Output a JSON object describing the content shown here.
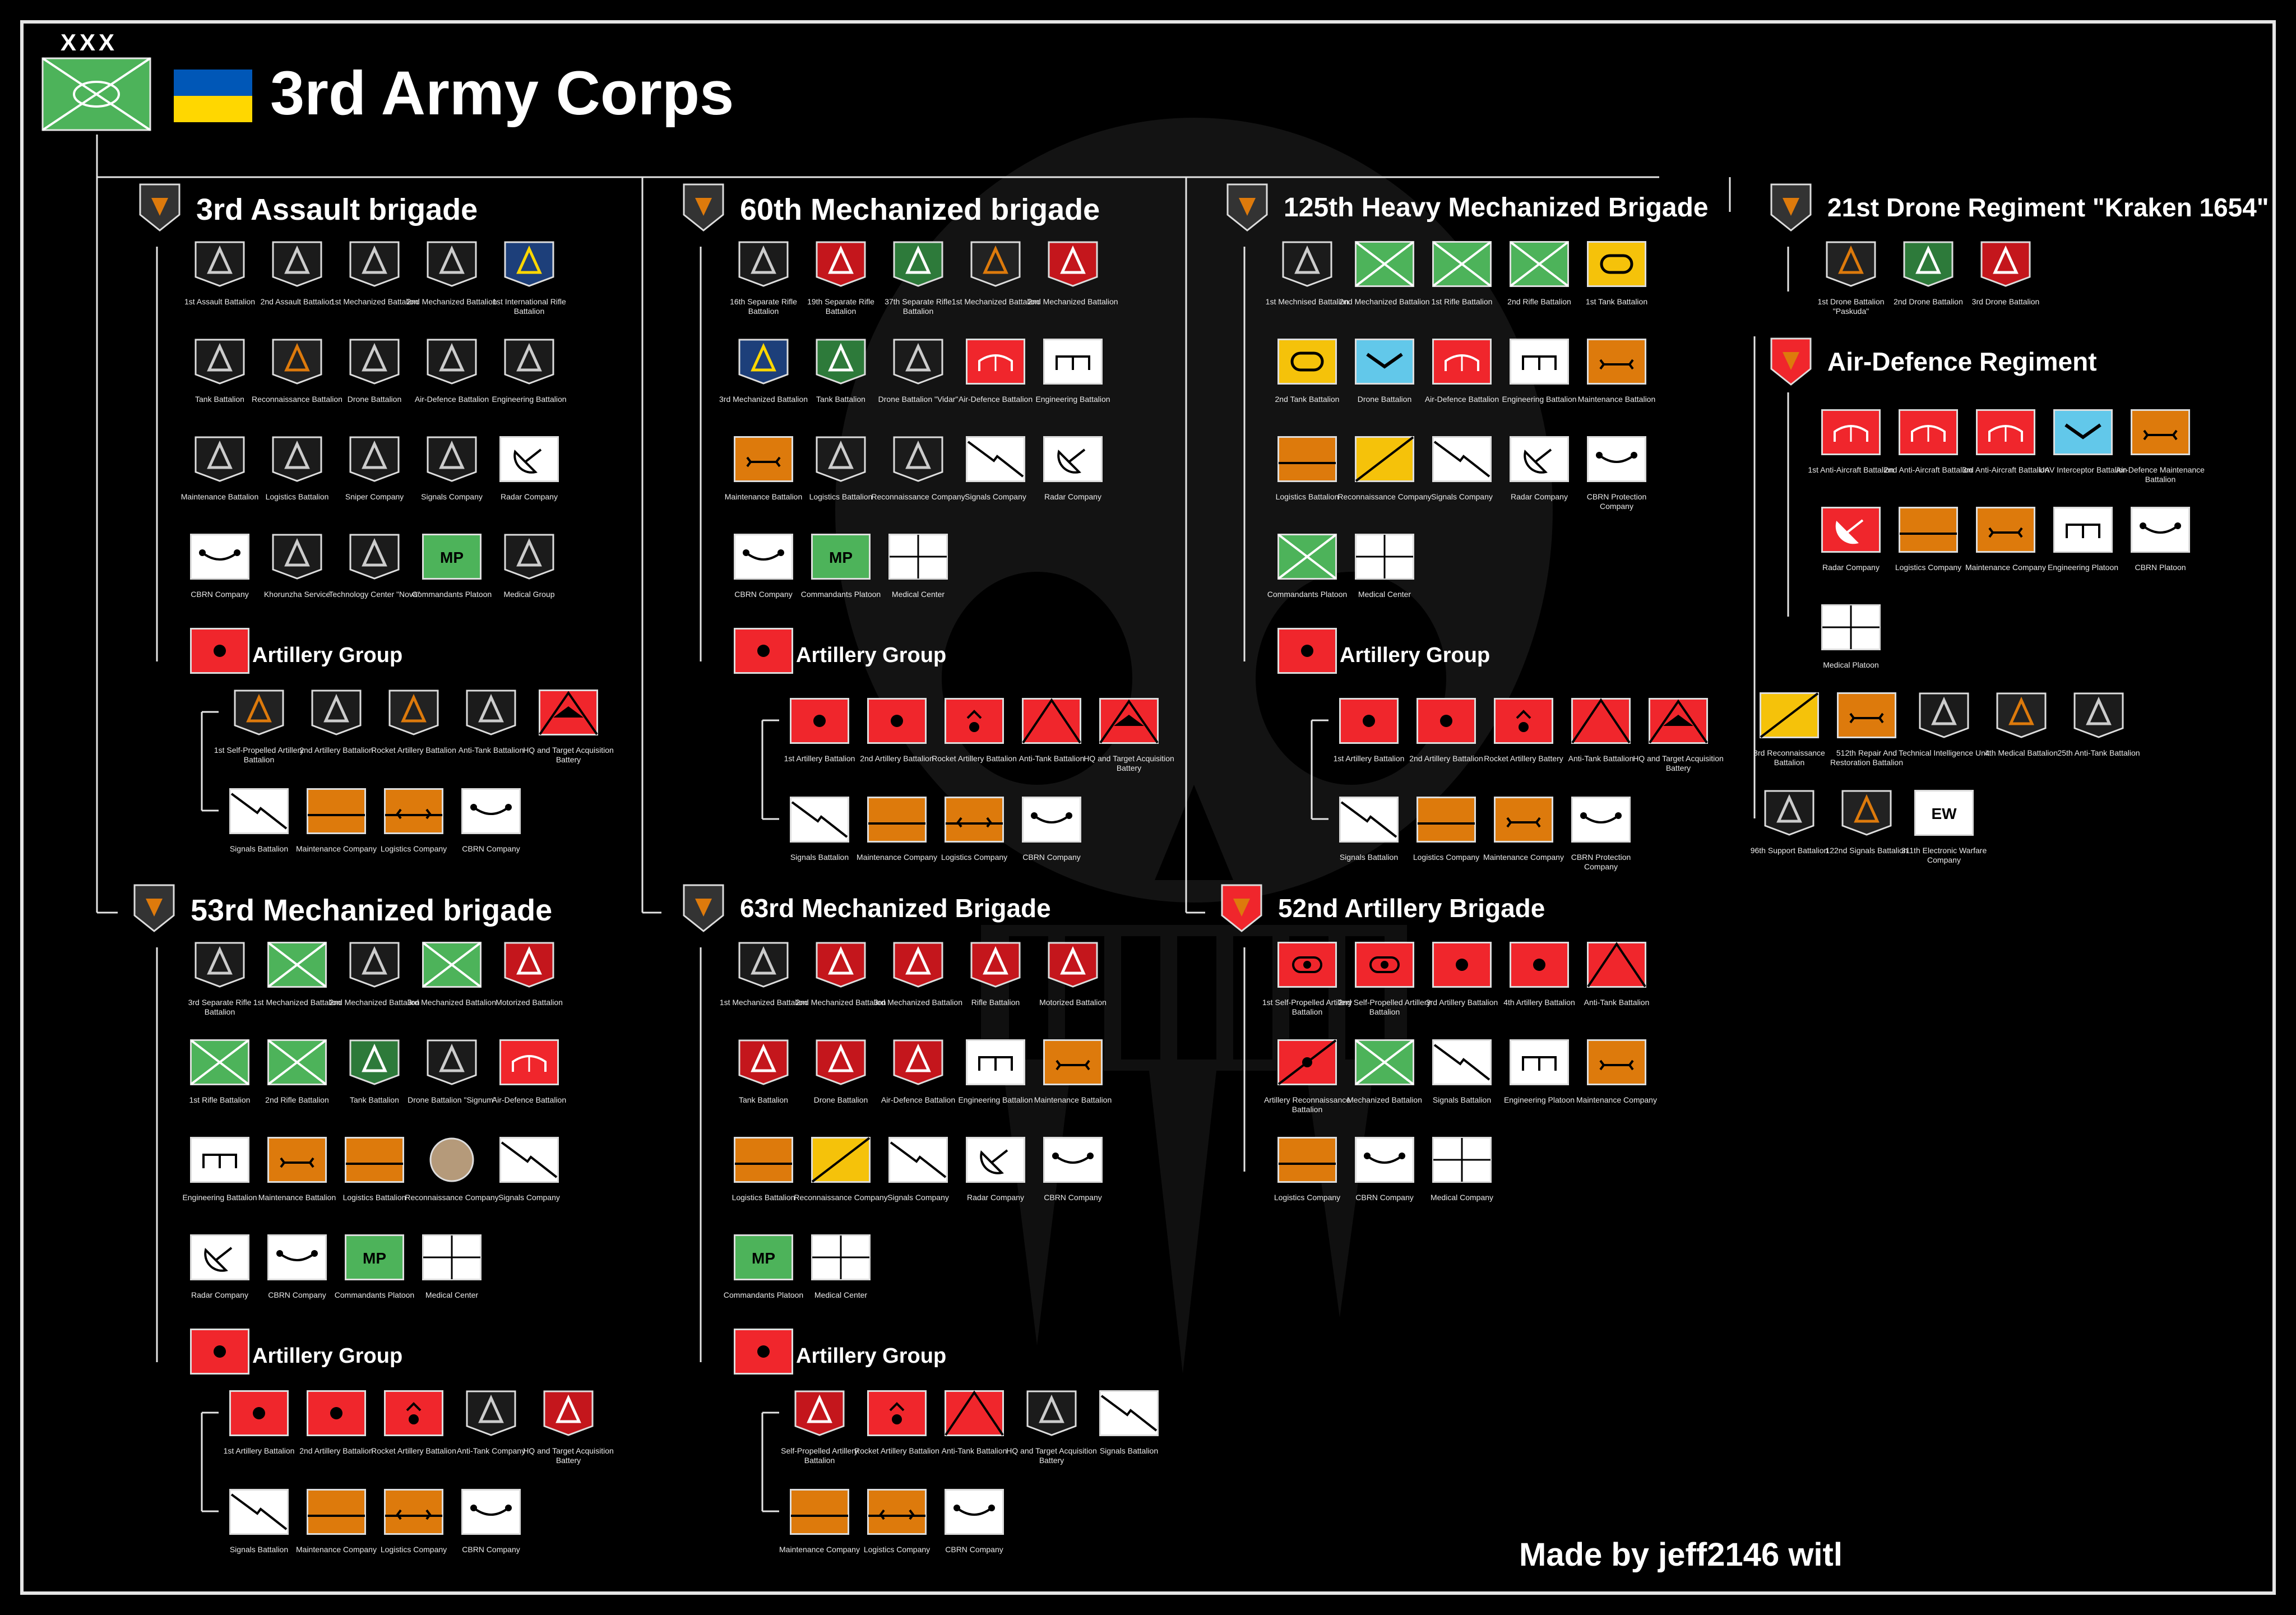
{
  "corps": {
    "title": "3rd Army Corps",
    "size_mark": "XXX"
  },
  "credit": "Made by jeff2146 witl",
  "colors": {
    "infantry": "#4db35a",
    "armor": "#f5c20a",
    "red": "#f0262c",
    "orange": "#dd7a0c",
    "light_blue": "#62c8ea",
    "background": "#000000"
  },
  "brigades": {
    "assault3": {
      "title": "3rd Assault brigade",
      "units": [
        {
          "label": "1st Assault Battalion",
          "type": "patch-dark"
        },
        {
          "label": "2nd Assault Battalion",
          "type": "patch-dark"
        },
        {
          "label": "1st Mechanized Battalion",
          "type": "patch-dark"
        },
        {
          "label": "2nd Mechanized Battalion",
          "type": "patch-dark"
        },
        {
          "label": "1st International Rifle Battalion",
          "type": "patch-blue"
        },
        {
          "label": "Tank Battalion",
          "type": "patch-dark"
        },
        {
          "label": "Reconnaissance Battalion",
          "type": "patch-orange"
        },
        {
          "label": "Drone Battalion",
          "type": "patch-dark"
        },
        {
          "label": "Air-Defence Battalion",
          "type": "patch-dark"
        },
        {
          "label": "Engineering Battalion",
          "type": "patch-dark"
        },
        {
          "label": "Maintenance Battalion",
          "type": "patch-dark"
        },
        {
          "label": "Logistics Battalion",
          "type": "patch-dark"
        },
        {
          "label": "Sniper Company",
          "type": "patch-dark"
        },
        {
          "label": "Signals Company",
          "type": "patch-dark"
        },
        {
          "label": "Radar Company",
          "type": "radar"
        },
        {
          "label": "CBRN Company",
          "type": "cbrn"
        },
        {
          "label": "Khorunzha Service",
          "type": "patch-dark"
        },
        {
          "label": "Technology Center \"Nova\"",
          "type": "patch-dark"
        },
        {
          "label": "Commandants Platoon",
          "type": "mp",
          "text": "MP"
        },
        {
          "label": "Medical Group",
          "type": "patch-dark"
        }
      ],
      "artillery_title": "Artillery Group",
      "artillery": [
        {
          "label": "1st Self-Propelled Artillery Battalion",
          "type": "patch-orange"
        },
        {
          "label": "2nd Artillery Battalion",
          "type": "patch-dark"
        },
        {
          "label": "Rocket Artillery Battalion",
          "type": "patch-orange"
        },
        {
          "label": "Anti-Tank Battalion",
          "type": "patch-dark"
        },
        {
          "label": "HQ and Target Acquisition Battery",
          "type": "hq-target"
        },
        {
          "label": "Signals Battalion",
          "type": "signals"
        },
        {
          "label": "Maintenance Company",
          "type": "maint-bar"
        },
        {
          "label": "Logistics Company",
          "type": "logistics"
        },
        {
          "label": "CBRN Company",
          "type": "cbrn"
        }
      ]
    },
    "mech60": {
      "title": "60th Mechanized brigade",
      "units": [
        {
          "label": "16th Separate Rifle Battalion",
          "type": "patch-dark"
        },
        {
          "label": "19th Separate Rifle Battalion",
          "type": "patch-red"
        },
        {
          "label": "37th Separate Rifle Battalion",
          "type": "patch-green"
        },
        {
          "label": "1st Mechanized Battalion",
          "type": "patch-orange"
        },
        {
          "label": "2nd Mechanized Battalion",
          "type": "patch-red"
        },
        {
          "label": "3rd Mechanized Battalion",
          "type": "patch-blue"
        },
        {
          "label": "Tank Battalion",
          "type": "patch-green"
        },
        {
          "label": "Drone Battalion \"Vidar\"",
          "type": "patch-dark"
        },
        {
          "label": "Air-Defence Battalion",
          "type": "air-defence"
        },
        {
          "label": "Engineering Battalion",
          "type": "engineering"
        },
        {
          "label": "Maintenance Battalion",
          "type": "maintenance"
        },
        {
          "label": "Logistics Battalion",
          "type": "patch-dark"
        },
        {
          "label": "Reconnaissance Company",
          "type": "patch-dark"
        },
        {
          "label": "Signals Company",
          "type": "signals"
        },
        {
          "label": "Radar Company",
          "type": "radar"
        },
        {
          "label": "CBRN Company",
          "type": "cbrn"
        },
        {
          "label": "Commandants Platoon",
          "type": "mp",
          "text": "MP"
        },
        {
          "label": "Medical Center",
          "type": "medical"
        }
      ],
      "artillery_title": "Artillery Group",
      "artillery": [
        {
          "label": "1st Artillery Battalion",
          "type": "artillery"
        },
        {
          "label": "2nd Artillery Battalion",
          "type": "artillery"
        },
        {
          "label": "Rocket Artillery Battalion",
          "type": "rocket"
        },
        {
          "label": "Anti-Tank Battalion",
          "type": "anti-tank"
        },
        {
          "label": "HQ and Target Acquisition Battery",
          "type": "hq-target"
        },
        {
          "label": "Signals Battalion",
          "type": "signals"
        },
        {
          "label": "Maintenance Company",
          "type": "maint-bar"
        },
        {
          "label": "Logistics Company",
          "type": "logistics"
        },
        {
          "label": "CBRN Company",
          "type": "cbrn"
        }
      ]
    },
    "heavy125": {
      "title": "125th Heavy Mechanized Brigade",
      "units": [
        {
          "label": "1st Mechnised Battalion",
          "type": "patch-dark"
        },
        {
          "label": "2nd Mechanized Battalion",
          "type": "infantry"
        },
        {
          "label": "1st Rifle Battalion",
          "type": "infantry"
        },
        {
          "label": "2nd Rifle Battalion",
          "type": "infantry"
        },
        {
          "label": "1st Tank Battalion",
          "type": "tank"
        },
        {
          "label": "2nd Tank Battalion",
          "type": "tank"
        },
        {
          "label": "Drone Battalion",
          "type": "drone"
        },
        {
          "label": "Air-Defence Battalion",
          "type": "air-defence"
        },
        {
          "label": "Engineering Battalion",
          "type": "engineering"
        },
        {
          "label": "Maintenance Battalion",
          "type": "maintenance"
        },
        {
          "label": "Logistics Battalion",
          "type": "maint-bar"
        },
        {
          "label": "Reconnaissance Company",
          "type": "recon"
        },
        {
          "label": "Signals Company",
          "type": "signals"
        },
        {
          "label": "Radar Company",
          "type": "radar"
        },
        {
          "label": "CBRN Protection Company",
          "type": "cbrn"
        },
        {
          "label": "Commandants Platoon",
          "type": "infantry"
        },
        {
          "label": "Medical Center",
          "type": "medical"
        }
      ],
      "artillery_title": "Artillery Group",
      "artillery": [
        {
          "label": "1st Artillery Battalion",
          "type": "artillery"
        },
        {
          "label": "2nd Artillery Battalion",
          "type": "artillery"
        },
        {
          "label": "Rocket Artillery Battery",
          "type": "rocket"
        },
        {
          "label": "Anti-Tank Battalion",
          "type": "anti-tank"
        },
        {
          "label": "HQ and Target Acquisition Battery",
          "type": "hq-target"
        },
        {
          "label": "Signals Battalion",
          "type": "signals"
        },
        {
          "label": "Logistics Company",
          "type": "maint-bar"
        },
        {
          "label": "Maintenance Company",
          "type": "maintenance"
        },
        {
          "label": "CBRN Protection Company",
          "type": "cbrn"
        }
      ]
    },
    "drone21": {
      "title": "21st Drone Regiment \"Kraken 1654\"",
      "units": [
        {
          "label": "1st Drone Battalion \"Paskuda\"",
          "type": "patch-orange"
        },
        {
          "label": "2nd Drone Battalion",
          "type": "patch-green"
        },
        {
          "label": "3rd Drone Battalion",
          "type": "patch-red"
        }
      ]
    },
    "airdef": {
      "title": "Air-Defence Regiment",
      "units": [
        {
          "label": "1st Anti-Aircraft Battalion",
          "type": "air-defence"
        },
        {
          "label": "2nd Anti-Aircraft Battalion",
          "type": "air-defence"
        },
        {
          "label": "3rd Anti-Aircraft Battalion",
          "type": "air-defence"
        },
        {
          "label": "UAV Interceptor Battalion",
          "type": "drone"
        },
        {
          "label": "Air-Defence Maintenance Battalion",
          "type": "maintenance"
        },
        {
          "label": "Radar Company",
          "type": "radar-red"
        },
        {
          "label": "Logistics Company",
          "type": "maint-bar"
        },
        {
          "label": "Maintenance Company",
          "type": "maintenance"
        },
        {
          "label": "Engineering Platoon",
          "type": "engineering"
        },
        {
          "label": "CBRN Platoon",
          "type": "cbrn"
        },
        {
          "label": "Medical Platoon",
          "type": "medical"
        }
      ]
    },
    "corps_units": [
      {
        "label": "3rd Reconnaissance Battalion",
        "type": "recon"
      },
      {
        "label": "512th Repair And Restoration Battalion",
        "type": "maintenance"
      },
      {
        "label": "Technical Intelligence Unit",
        "type": "patch-dark"
      },
      {
        "label": "4th Medical Battalion",
        "type": "patch-orange"
      },
      {
        "label": "25th Anti-Tank Battalion",
        "type": "patch-dark"
      },
      {
        "label": "96th Support Battalion",
        "type": "patch-dark"
      },
      {
        "label": "122nd Signals Battalion",
        "type": "patch-orange"
      },
      {
        "label": "311th Electronic Warfare Company",
        "type": "ew",
        "text": "EW"
      }
    ],
    "mech53": {
      "title": "53rd Mechanized brigade",
      "units": [
        {
          "label": "3rd Separate Rifle Battalion",
          "type": "patch-dark"
        },
        {
          "label": "1st Mechanized Battalion",
          "type": "infantry"
        },
        {
          "label": "2nd Mechanized Battalion",
          "type": "patch-dark"
        },
        {
          "label": "3rd Mechanized Battalion",
          "type": "infantry"
        },
        {
          "label": "Motorized Battalion",
          "type": "patch-red"
        },
        {
          "label": "1st Rifle Battalion",
          "type": "infantry"
        },
        {
          "label": "2nd Rifle Battalion",
          "type": "infantry"
        },
        {
          "label": "Tank Battalion",
          "type": "patch-green"
        },
        {
          "label": "Drone Battalion \"Signum\"",
          "type": "patch-dark"
        },
        {
          "label": "Air-Defence Battalion",
          "type": "air-defence"
        },
        {
          "label": "Engineering Battalion",
          "type": "engineering"
        },
        {
          "label": "Maintenance Battalion",
          "type": "maintenance"
        },
        {
          "label": "Logistics Battalion",
          "type": "maint-bar"
        },
        {
          "label": "Reconnaissance Company",
          "type": "patch-tan"
        },
        {
          "label": "Signals Company",
          "type": "signals"
        },
        {
          "label": "Radar Company",
          "type": "radar"
        },
        {
          "label": "CBRN Company",
          "type": "cbrn"
        },
        {
          "label": "Commandants Platoon",
          "type": "mp",
          "text": "MP"
        },
        {
          "label": "Medical Center",
          "type": "medical"
        }
      ],
      "artillery_title": "Artillery Group",
      "artillery": [
        {
          "label": "1st Artillery Battalion",
          "type": "artillery"
        },
        {
          "label": "2nd Artillery Battalion",
          "type": "artillery"
        },
        {
          "label": "Rocket Artillery Battalion",
          "type": "rocket"
        },
        {
          "label": "Anti-Tank Company",
          "type": "patch-dark"
        },
        {
          "label": "HQ and Target Acquisition Battery",
          "type": "patch-red"
        },
        {
          "label": "Signals Battalion",
          "type": "signals"
        },
        {
          "label": "Maintenance Company",
          "type": "maint-bar"
        },
        {
          "label": "Logistics Company",
          "type": "logistics"
        },
        {
          "label": "CBRN Company",
          "type": "cbrn"
        }
      ]
    },
    "mech63": {
      "title": "63rd Mechanized Brigade",
      "units": [
        {
          "label": "1st Mechanized Battalion",
          "type": "patch-dark"
        },
        {
          "label": "2nd Mechanized Battalion",
          "type": "patch-red"
        },
        {
          "label": "3rd Mechanized Battalion",
          "type": "patch-red"
        },
        {
          "label": "Rifle Battalion",
          "type": "patch-red"
        },
        {
          "label": "Motorized Battalion",
          "type": "patch-red"
        },
        {
          "label": "Tank Battalion",
          "type": "patch-red"
        },
        {
          "label": "Drone Battalion",
          "type": "patch-red"
        },
        {
          "label": "Air-Defence Battalion",
          "type": "patch-red"
        },
        {
          "label": "Engineering Battalion",
          "type": "engineering"
        },
        {
          "label": "Maintenance Battalion",
          "type": "maintenance"
        },
        {
          "label": "Logistics Battalion",
          "type": "maint-bar"
        },
        {
          "label": "Reconnaissance Company",
          "type": "recon"
        },
        {
          "label": "Signals Company",
          "type": "signals"
        },
        {
          "label": "Radar Company",
          "type": "radar"
        },
        {
          "label": "CBRN Company",
          "type": "cbrn"
        },
        {
          "label": "Commandants Platoon",
          "type": "mp",
          "text": "MP"
        },
        {
          "label": "Medical Center",
          "type": "medical"
        }
      ],
      "artillery_title": "Artillery Group",
      "artillery": [
        {
          "label": "Self-Propelled Artillery Battalion",
          "type": "patch-red"
        },
        {
          "label": "Rocket Artillery Battalion",
          "type": "rocket"
        },
        {
          "label": "Anti-Tank Battalion",
          "type": "anti-tank"
        },
        {
          "label": "HQ and Target Acquisition Battery",
          "type": "patch-dark"
        },
        {
          "label": "Signals Battalion",
          "type": "signals"
        },
        {
          "label": "Maintenance Company",
          "type": "maint-bar"
        },
        {
          "label": "Logistics Company",
          "type": "logistics"
        },
        {
          "label": "CBRN Company",
          "type": "cbrn"
        }
      ]
    },
    "art52": {
      "title": "52nd Artillery Brigade",
      "units": [
        {
          "label": "1st Self-Propelled Artillery Battalion",
          "type": "sp-artillery"
        },
        {
          "label": "2nd Self-Propelled Artillery Battalion",
          "type": "sp-artillery"
        },
        {
          "label": "3rd Artillery Battalion",
          "type": "artillery"
        },
        {
          "label": "4th Artillery Battalion",
          "type": "artillery"
        },
        {
          "label": "Anti-Tank Battalion",
          "type": "anti-tank"
        },
        {
          "label": "Artillery Reconnaissance Battalion",
          "type": "art-recon"
        },
        {
          "label": "Mechanized Battalion",
          "type": "infantry"
        },
        {
          "label": "Signals Battalion",
          "type": "signals"
        },
        {
          "label": "Engineering Platoon",
          "type": "engineering"
        },
        {
          "label": "Maintenance Company",
          "type": "maintenance"
        },
        {
          "label": "Logistics Company",
          "type": "maint-bar"
        },
        {
          "label": "CBRN Company",
          "type": "cbrn"
        },
        {
          "label": "Medical Company",
          "type": "medical"
        }
      ]
    }
  }
}
